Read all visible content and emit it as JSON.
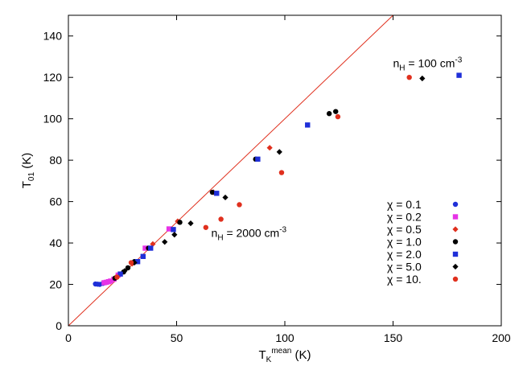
{
  "chart_data": {
    "type": "scatter",
    "title": "",
    "xlabel": {
      "main": "T",
      "sub": "K",
      "sup": "mean",
      "unit": " (K)"
    },
    "ylabel": {
      "main": "T",
      "sub": "01",
      "unit": " (K)"
    },
    "xlim": [
      0,
      200
    ],
    "ylim": [
      0,
      150
    ],
    "xticks": [
      0,
      50,
      100,
      150,
      200
    ],
    "yticks": [
      0,
      20,
      40,
      60,
      80,
      100,
      120,
      140
    ],
    "grid": false,
    "legend_position": "right",
    "reference_line": {
      "from": [
        0,
        0
      ],
      "to": [
        150,
        150
      ],
      "color": "#e0301e"
    },
    "annotations": [
      {
        "id": "nh-100",
        "prefix": "n",
        "sub": "H",
        "text": " = 100 cm",
        "sup": "-3",
        "x": 150,
        "y": 125
      },
      {
        "id": "nh-2000",
        "prefix": "n",
        "sub": "H",
        "text": " = 2000 cm",
        "sup": "-3",
        "x": 66,
        "y": 43
      }
    ],
    "series": [
      {
        "name": "χ = 0.1",
        "color": "#1f2fd8",
        "marker": "circle",
        "points": [
          [
            12.5,
            20.2
          ],
          [
            13.5,
            20.1
          ],
          [
            14.5,
            20.0
          ],
          [
            16.0,
            20.5
          ]
        ]
      },
      {
        "name": "χ = 0.2",
        "color": "#e633e6",
        "marker": "square",
        "points": [
          [
            16.5,
            20.8
          ],
          [
            17.5,
            21.0
          ],
          [
            18.5,
            21.3
          ],
          [
            19.5,
            21.6
          ],
          [
            21.0,
            22.5
          ],
          [
            23.0,
            24.5
          ],
          [
            35.5,
            37.5
          ],
          [
            46.5,
            46.8
          ]
        ]
      },
      {
        "name": "χ = 0.5",
        "color": "#e0301e",
        "marker": "diamond",
        "points": [
          [
            22.0,
            23.5
          ],
          [
            29.5,
            30.0
          ],
          [
            39.0,
            39.5
          ],
          [
            50.5,
            50.5
          ],
          [
            67.0,
            64.5
          ],
          [
            93.0,
            86.0
          ]
        ]
      },
      {
        "name": "χ = 1.0",
        "color": "#000000",
        "marker": "circle",
        "points": [
          [
            21.5,
            23.0
          ],
          [
            25.5,
            26.0
          ],
          [
            27.5,
            28.0
          ],
          [
            30.5,
            31.0
          ],
          [
            37.0,
            37.5
          ],
          [
            51.5,
            50.0
          ],
          [
            66.5,
            64.5
          ],
          [
            86.5,
            80.5
          ],
          [
            120.5,
            102.5
          ],
          [
            123.5,
            103.5
          ]
        ]
      },
      {
        "name": "χ = 2.0",
        "color": "#1f2fd8",
        "marker": "square",
        "points": [
          [
            24.0,
            25.0
          ],
          [
            32.0,
            31.0
          ],
          [
            34.5,
            33.5
          ],
          [
            38.0,
            37.5
          ],
          [
            48.5,
            46.5
          ],
          [
            68.5,
            64.0
          ],
          [
            87.5,
            80.5
          ],
          [
            110.5,
            97.0
          ],
          [
            180.5,
            121.0
          ]
        ]
      },
      {
        "name": "χ = 5.0",
        "color": "#000000",
        "marker": "diamond",
        "points": [
          [
            26.0,
            26.5
          ],
          [
            30.5,
            30.5
          ],
          [
            44.5,
            40.5
          ],
          [
            49.0,
            44.0
          ],
          [
            56.5,
            49.5
          ],
          [
            72.5,
            62.0
          ],
          [
            97.5,
            84.0
          ],
          [
            163.5,
            119.5
          ]
        ]
      },
      {
        "name": "χ = 10.",
        "color": "#e0301e",
        "marker": "circle",
        "points": [
          [
            22.5,
            23.5
          ],
          [
            29.0,
            30.5
          ],
          [
            63.5,
            47.5
          ],
          [
            70.5,
            51.5
          ],
          [
            79.0,
            58.5
          ],
          [
            98.5,
            74.0
          ],
          [
            124.5,
            101.0
          ],
          [
            157.5,
            120.0
          ]
        ]
      }
    ]
  }
}
